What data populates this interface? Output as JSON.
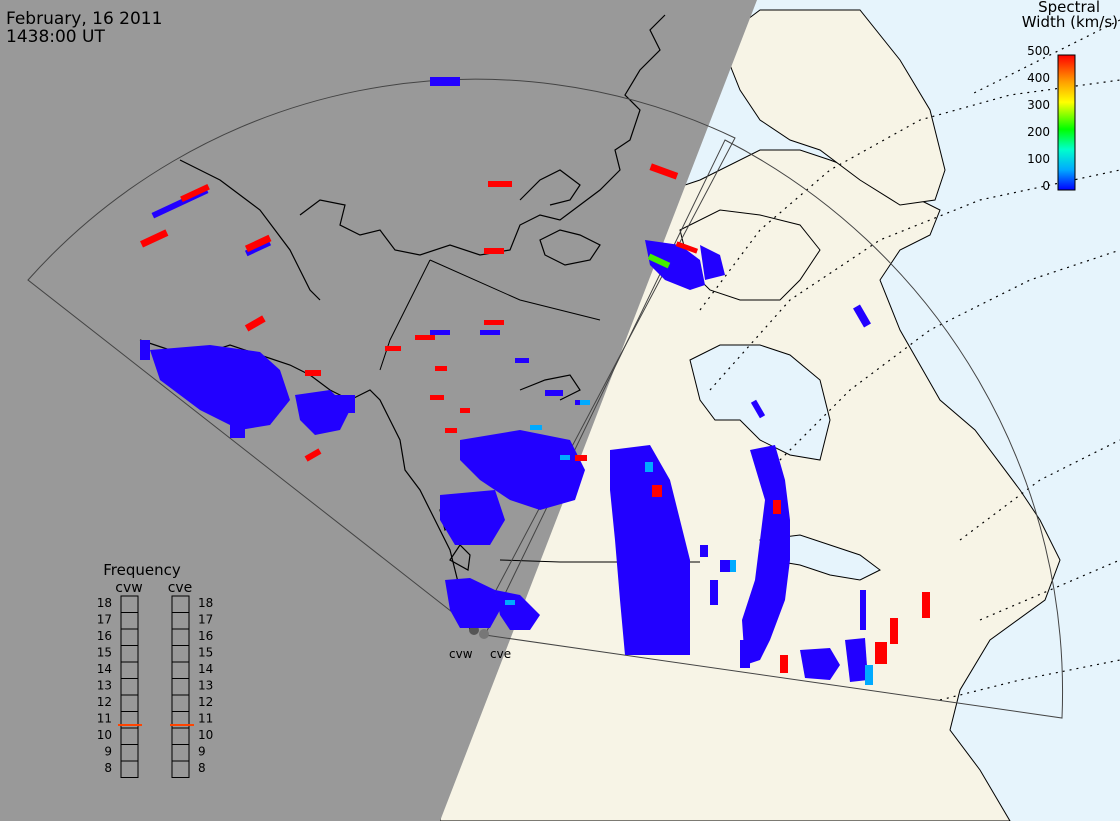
{
  "header": {
    "date": "February, 16 2011",
    "time": "1438:00 UT"
  },
  "colorbar": {
    "title_line1": "Spectral",
    "title_line2": "Width (km/s)",
    "ticks": [
      "500",
      "400",
      "300",
      "200",
      "100",
      "0"
    ],
    "colors": [
      "#0000ff",
      "#00aaff",
      "#00ffcc",
      "#00ff00",
      "#ffff00",
      "#ffa000",
      "#ff0000"
    ]
  },
  "radars": {
    "west": "cvw",
    "east": "cve"
  },
  "frequency": {
    "title": "Frequency",
    "col_west": "cvw",
    "col_east": "cve",
    "levels": [
      "18",
      "17",
      "16",
      "15",
      "14",
      "13",
      "12",
      "11",
      "10",
      "9",
      "8"
    ],
    "marker_value": "11",
    "marker_color": "#ff4400"
  },
  "map_colors": {
    "night": "#999999",
    "land": "#f7f4e6",
    "ocean": "#e6f4fc",
    "echo_low": "#2200ff",
    "echo_high": "#ff0000"
  }
}
